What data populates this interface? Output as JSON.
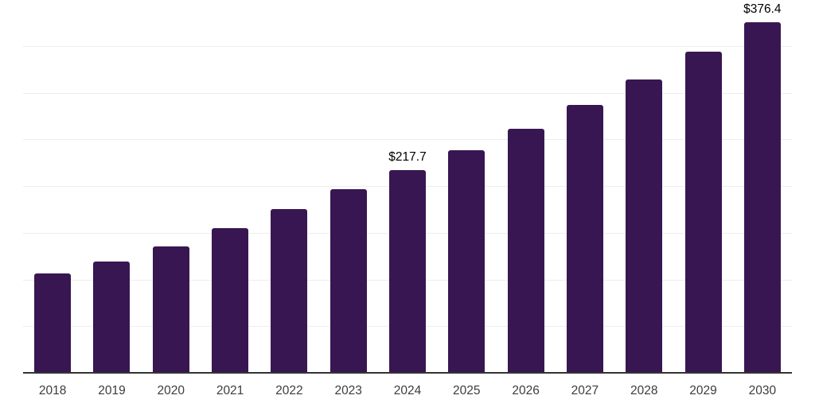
{
  "chart_data": {
    "type": "bar",
    "title": "",
    "xlabel": "",
    "ylabel": "",
    "categories": [
      "2018",
      "2019",
      "2020",
      "2021",
      "2022",
      "2023",
      "2024",
      "2025",
      "2026",
      "2027",
      "2028",
      "2029",
      "2030"
    ],
    "values": [
      107.2,
      119.6,
      136.2,
      155.7,
      176.2,
      197.4,
      217.7,
      239.1,
      262.1,
      287.7,
      314.9,
      344.7,
      376.4
    ],
    "point_labels": [
      null,
      null,
      null,
      null,
      null,
      null,
      "$217.7",
      null,
      null,
      null,
      null,
      null,
      "$376.4"
    ],
    "value_prefix": "$",
    "ylim": [
      0,
      400
    ],
    "grid_step": 50,
    "grid": "horizontal",
    "legend": "none",
    "bar_color": "#381652",
    "grid_color": "#ededed",
    "axis_color": "#333333",
    "tick_label_color": "#3c3c3c",
    "data_label_color": "#000000",
    "background_color": "#ffffff"
  }
}
